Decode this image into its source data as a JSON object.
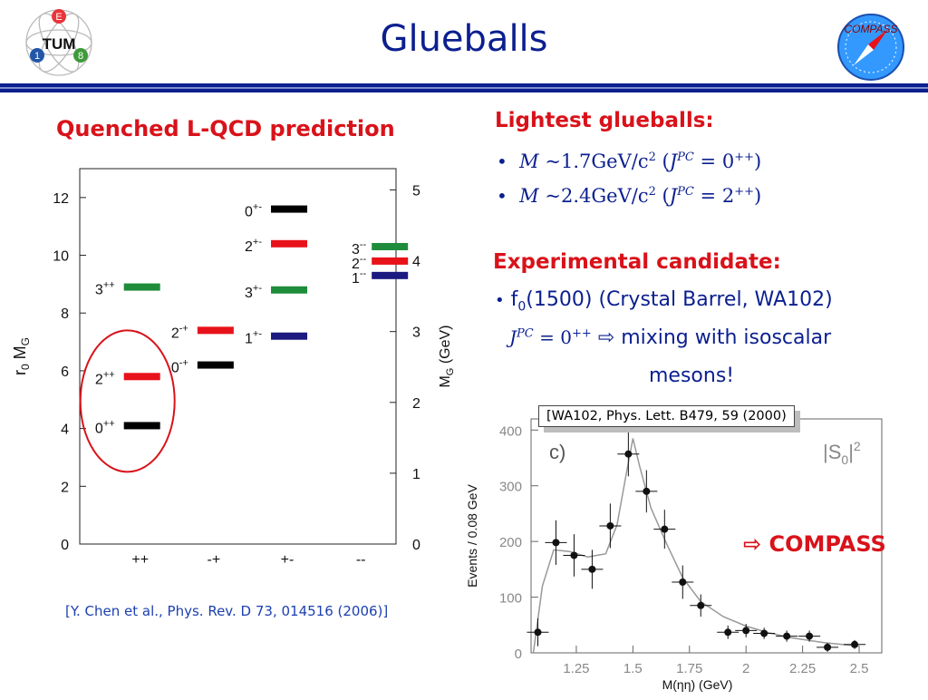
{
  "header": {
    "title": "Glueballs",
    "logo_left_letters": [
      "E",
      "1",
      "8"
    ],
    "logo_left_text": "TUM",
    "logo_right_text": "COMPASS"
  },
  "left": {
    "heading": "Quenched L-QCD prediction",
    "reference": "[Y. Chen et al., Phys. Rev. D 73, 014516 (2006)]"
  },
  "right": {
    "heading1": "Lightest glueballs:",
    "mass1": {
      "m": "M",
      "approx": "~",
      "value": "1.7",
      "unit": "GeV/c",
      "jpc": "0",
      "sup": "++"
    },
    "mass2": {
      "m": "M",
      "approx": "~",
      "value": "2.4",
      "unit": "GeV/c",
      "jpc": "2",
      "sup": "++"
    },
    "heading2": "Experimental candidate:",
    "cand_line1": "f",
    "cand_sub": "0",
    "cand_rest": "(1500) (Crystal Barrel, WA102)",
    "cand_jpc": "0",
    "cand_jpc_sup": "++",
    "cand_arrow": "⇨",
    "cand_line2": "mixing with isoscalar",
    "cand_line3": "mesons!",
    "compass_arrow": "⇨",
    "compass_label": "COMPASS",
    "ref_box": "[WA102, Phys. Lett. B479, 59 (2000)"
  },
  "chart_data": [
    {
      "type": "scatter",
      "title": "",
      "ylabel": "r0 MG",
      "ylabel_right": "MG (GeV)",
      "ylim": [
        0,
        13
      ],
      "ylim_right": [
        0,
        5.3
      ],
      "yticks": [
        0,
        2,
        4,
        6,
        8,
        10,
        12
      ],
      "yticks_right": [
        0,
        1,
        2,
        3,
        4,
        5
      ],
      "categories": [
        "++",
        "-+",
        "+-",
        "--"
      ],
      "levels": [
        {
          "category": "++",
          "label": "0",
          "label_sup": "++",
          "r0MG": 4.1,
          "color": "#000000"
        },
        {
          "category": "++",
          "label": "2",
          "label_sup": "++",
          "r0MG": 5.8,
          "color": "#e8121a"
        },
        {
          "category": "++",
          "label": "3",
          "label_sup": "++",
          "r0MG": 8.9,
          "color": "#1e8c3a"
        },
        {
          "category": "-+",
          "label": "0",
          "label_sup": "-+",
          "r0MG": 6.2,
          "color": "#000000"
        },
        {
          "category": "-+",
          "label": "2",
          "label_sup": "-+",
          "r0MG": 7.4,
          "color": "#e8121a"
        },
        {
          "category": "+-",
          "label": "1",
          "label_sup": "+-",
          "r0MG": 7.2,
          "color": "#1a1a80"
        },
        {
          "category": "+-",
          "label": "3",
          "label_sup": "+-",
          "r0MG": 8.8,
          "color": "#1e8c3a"
        },
        {
          "category": "+-",
          "label": "2",
          "label_sup": "+-",
          "r0MG": 10.4,
          "color": "#e8121a"
        },
        {
          "category": "+-",
          "label": "0",
          "label_sup": "+-",
          "r0MG": 11.6,
          "color": "#000000"
        },
        {
          "category": "--",
          "label": "3",
          "label_sup": "--",
          "r0MG": 10.3,
          "color": "#1e8c3a"
        },
        {
          "category": "--",
          "label": "2",
          "label_sup": "--",
          "r0MG": 9.8,
          "color": "#e8121a"
        },
        {
          "category": "--",
          "label": "1",
          "label_sup": "--",
          "r0MG": 9.3,
          "color": "#1a1a80"
        }
      ]
    },
    {
      "type": "scatter",
      "title": "",
      "panel_label": "c)",
      "legend_text": "|S",
      "legend_sub": "0",
      "legend_suffix": "|",
      "legend_sup": "2",
      "xlabel": "M(ηη) (GeV)",
      "ylabel": "Events / 0.08 GeV",
      "xlim": [
        1.05,
        2.6
      ],
      "ylim": [
        0,
        420
      ],
      "xticks": [
        1.25,
        1.5,
        1.75,
        2,
        2.25,
        2.5
      ],
      "xtick_labels": [
        "1.25",
        "1.5",
        "1.75",
        "2",
        "2.25",
        "2.5"
      ],
      "yticks": [
        0,
        100,
        200,
        300,
        400
      ],
      "points": [
        {
          "x": 1.08,
          "y": 37,
          "err": 25
        },
        {
          "x": 1.16,
          "y": 198,
          "err": 40
        },
        {
          "x": 1.24,
          "y": 175,
          "err": 38
        },
        {
          "x": 1.32,
          "y": 150,
          "err": 35
        },
        {
          "x": 1.4,
          "y": 228,
          "err": 40
        },
        {
          "x": 1.48,
          "y": 357,
          "err": 40
        },
        {
          "x": 1.56,
          "y": 290,
          "err": 38
        },
        {
          "x": 1.64,
          "y": 222,
          "err": 35
        },
        {
          "x": 1.72,
          "y": 127,
          "err": 30
        },
        {
          "x": 1.8,
          "y": 85,
          "err": 20
        },
        {
          "x": 1.92,
          "y": 37,
          "err": 12
        },
        {
          "x": 2.0,
          "y": 40,
          "err": 12
        },
        {
          "x": 2.08,
          "y": 35,
          "err": 10
        },
        {
          "x": 2.18,
          "y": 30,
          "err": 10
        },
        {
          "x": 2.28,
          "y": 30,
          "err": 10
        },
        {
          "x": 2.36,
          "y": 10,
          "err": 8
        },
        {
          "x": 2.48,
          "y": 15,
          "err": 8
        }
      ],
      "fit_curve": [
        [
          1.06,
          0
        ],
        [
          1.1,
          120
        ],
        [
          1.15,
          185
        ],
        [
          1.22,
          182
        ],
        [
          1.3,
          172
        ],
        [
          1.38,
          178
        ],
        [
          1.43,
          230
        ],
        [
          1.47,
          320
        ],
        [
          1.5,
          385
        ],
        [
          1.53,
          335
        ],
        [
          1.58,
          260
        ],
        [
          1.65,
          195
        ],
        [
          1.72,
          135
        ],
        [
          1.8,
          92
        ],
        [
          1.9,
          65
        ],
        [
          2.0,
          48
        ],
        [
          2.1,
          36
        ],
        [
          2.2,
          27
        ],
        [
          2.35,
          18
        ],
        [
          2.5,
          12
        ]
      ]
    }
  ]
}
